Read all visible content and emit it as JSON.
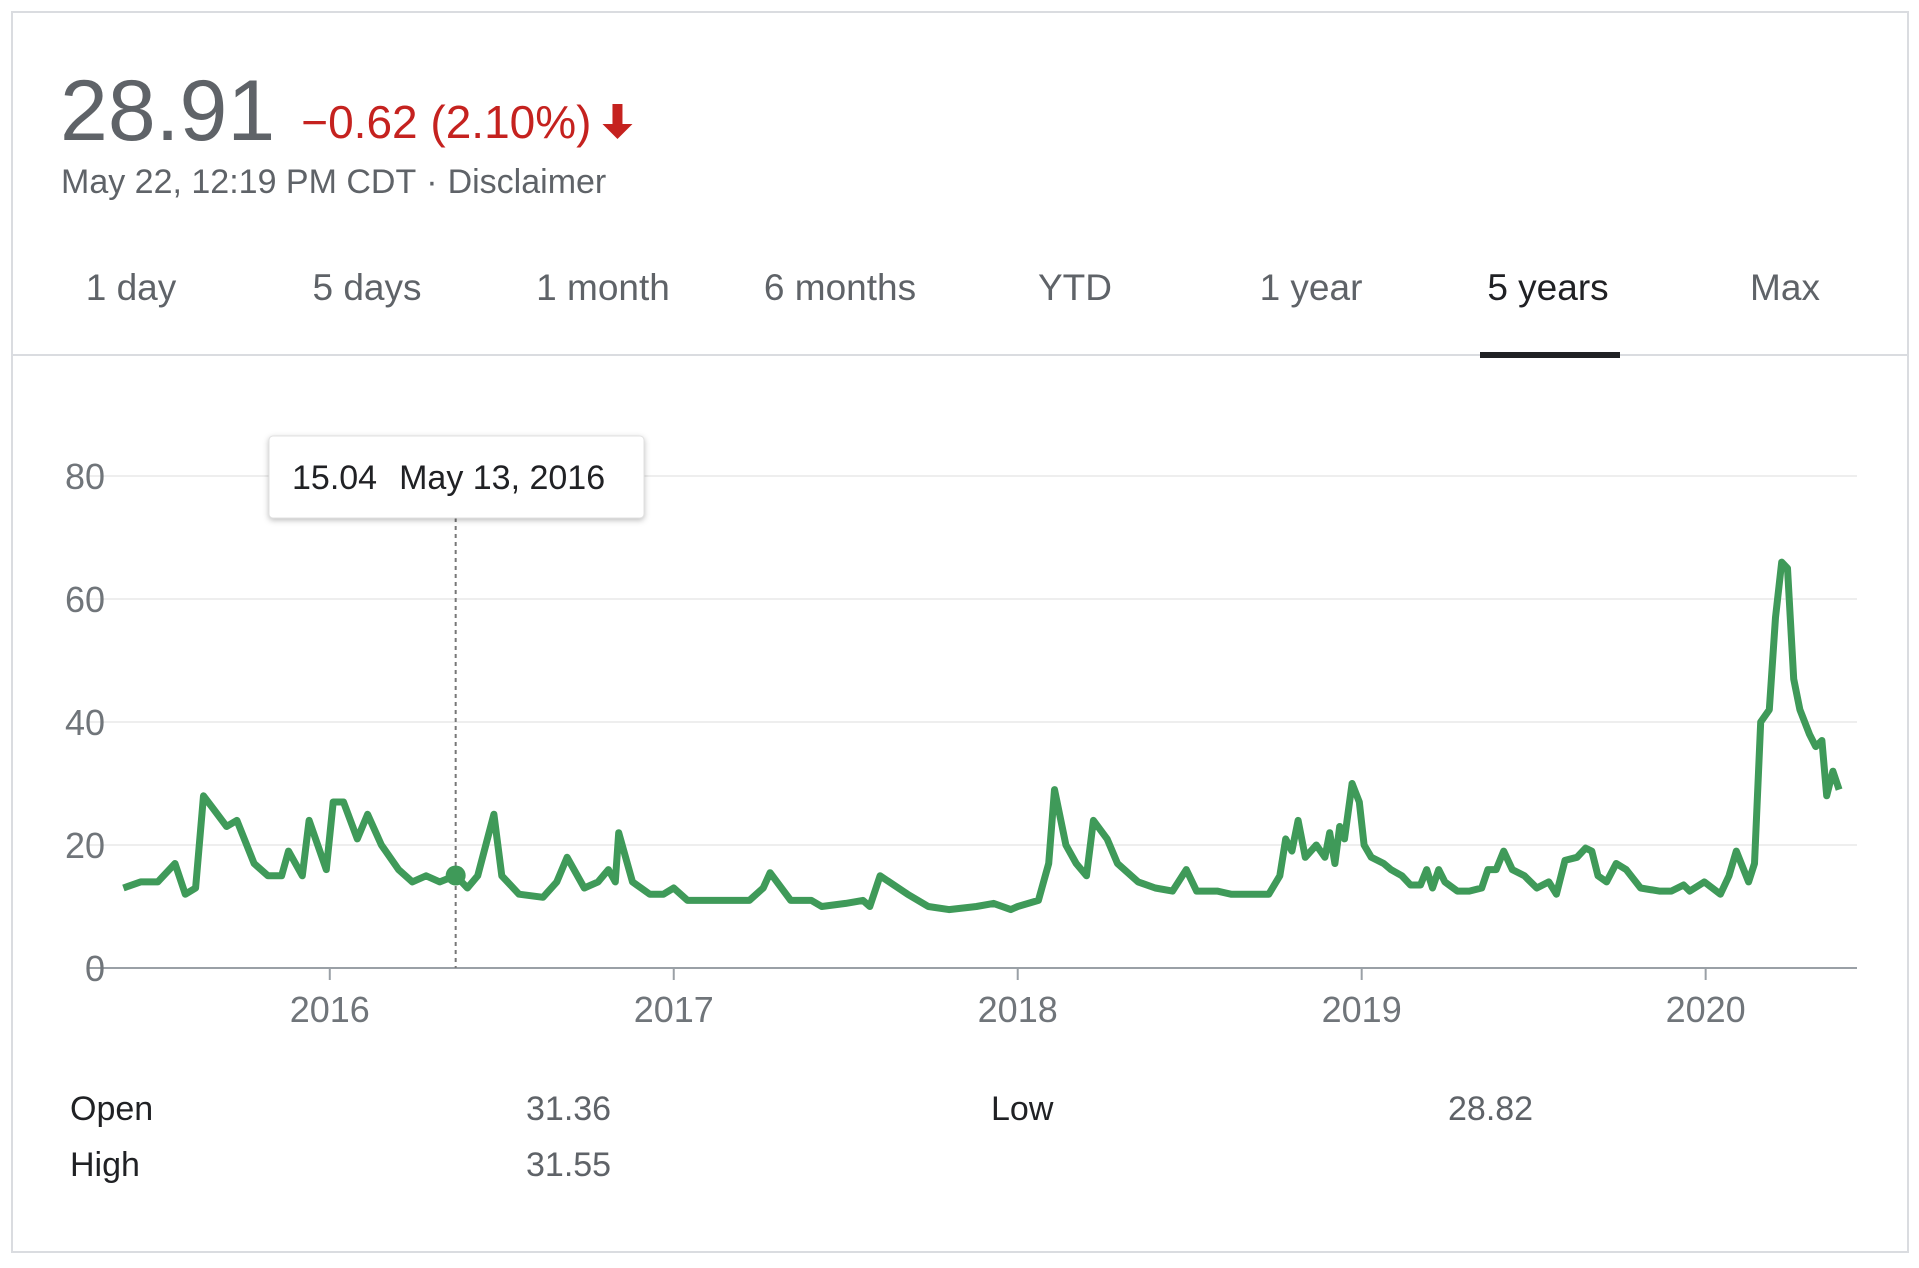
{
  "header": {
    "price": "28.91",
    "change": "−0.62 (2.10%)",
    "timestamp": "May 22, 12:19 PM CDT",
    "separator": "·",
    "disclaimer": "Disclaimer"
  },
  "tabs": [
    "1 day",
    "5 days",
    "1 month",
    "6 months",
    "YTD",
    "1 year",
    "5 years",
    "Max"
  ],
  "active_tab": "5 years",
  "chart_data": {
    "type": "line",
    "x": [
      2015.4,
      2015.45,
      2015.5,
      2015.55,
      2015.58,
      2015.61,
      2015.633,
      2015.66,
      2015.7,
      2015.73,
      2015.78,
      2015.82,
      2015.86,
      2015.88,
      2015.92,
      2015.94,
      2015.99,
      2016.01,
      2016.04,
      2016.08,
      2016.11,
      2016.15,
      2016.2,
      2016.24,
      2016.28,
      2016.32,
      2016.366,
      2016.4,
      2016.43,
      2016.477,
      2016.5,
      2016.55,
      2016.62,
      2016.66,
      2016.69,
      2016.74,
      2016.78,
      2016.81,
      2016.83,
      2016.84,
      2016.88,
      2016.93,
      2016.97,
      2017.0,
      2017.04,
      2017.1,
      2017.15,
      2017.22,
      2017.26,
      2017.28,
      2017.34,
      2017.4,
      2017.43,
      2017.5,
      2017.55,
      2017.57,
      2017.6,
      2017.68,
      2017.74,
      2017.8,
      2017.88,
      2017.93,
      2017.98,
      2018.0,
      2018.06,
      2018.09,
      2018.107,
      2018.14,
      2018.17,
      2018.2,
      2018.22,
      2018.26,
      2018.29,
      2018.35,
      2018.4,
      2018.45,
      2018.49,
      2018.52,
      2018.58,
      2018.62,
      2018.66,
      2018.73,
      2018.762,
      2018.779,
      2018.797,
      2018.815,
      2018.836,
      2018.868,
      2018.893,
      2018.907,
      2018.922,
      2018.936,
      2018.95,
      2018.972,
      2018.993,
      2019.007,
      2019.028,
      2019.064,
      2019.085,
      2019.117,
      2019.142,
      2019.171,
      2019.189,
      2019.206,
      2019.224,
      2019.242,
      2019.278,
      2019.313,
      2019.349,
      2019.367,
      2019.391,
      2019.413,
      2019.438,
      2019.473,
      2019.509,
      2019.544,
      2019.566,
      2019.591,
      2019.626,
      2019.651,
      2019.669,
      2019.687,
      2019.712,
      2019.74,
      2019.769,
      2019.811,
      2019.865,
      2019.9,
      2019.936,
      2019.954,
      2019.996,
      2020.043,
      2020.068,
      2020.089,
      2020.125,
      2020.142,
      2020.16,
      2020.185,
      2020.203,
      2020.221,
      2020.238,
      2020.256,
      2020.274,
      2020.302,
      2020.32,
      2020.338,
      2020.352,
      2020.37,
      2020.388
    ],
    "series": [
      {
        "color": "#3f9a59",
        "values": [
          13,
          14,
          14,
          17,
          12,
          13,
          28,
          26,
          23,
          24,
          17,
          15,
          15,
          19,
          15,
          24,
          16,
          27,
          27,
          21,
          25,
          20,
          16,
          14,
          15,
          14,
          15.04,
          13,
          15,
          25,
          15,
          12,
          11.5,
          14,
          18,
          13,
          14,
          16,
          14,
          22,
          14,
          12,
          12,
          13,
          11,
          11,
          11,
          11,
          13,
          15.5,
          11,
          11,
          10,
          10.5,
          11,
          10,
          15,
          12,
          10,
          9.5,
          10,
          10.5,
          9.5,
          10,
          11,
          17,
          29,
          20,
          17,
          15,
          24,
          21,
          17,
          14,
          13,
          12.5,
          16,
          12.5,
          12.5,
          12,
          12,
          12,
          15,
          21,
          19,
          24,
          18,
          20,
          18,
          22,
          17,
          23,
          21,
          30,
          27,
          20,
          18,
          17,
          16,
          15,
          13.5,
          13.5,
          16,
          13,
          16,
          14,
          12.5,
          12.5,
          13,
          16,
          16,
          19,
          16,
          15,
          13,
          14,
          12,
          17.5,
          18,
          19.5,
          19,
          15,
          14,
          17,
          16,
          13,
          12.5,
          12.5,
          13.5,
          12.5,
          14,
          12,
          15,
          19,
          14,
          17,
          40,
          42,
          57,
          66,
          65,
          47,
          42,
          38,
          36,
          37,
          28,
          32,
          29
        ]
      }
    ],
    "xlim": [
      2015.3,
      2020.44
    ],
    "xticks": [
      2016,
      2017,
      2018,
      2019,
      2020
    ],
    "ylim": [
      0,
      80
    ],
    "yticks": [
      0,
      20,
      40,
      60,
      80
    ],
    "grid": true,
    "tooltip": {
      "x": 2016.366,
      "value": 15.04,
      "label": "May 13, 2016"
    }
  },
  "stats": [
    {
      "label": "Open",
      "value": "31.36"
    },
    {
      "label": "High",
      "value": "31.55"
    },
    {
      "label": "Low",
      "value": "28.82"
    }
  ]
}
